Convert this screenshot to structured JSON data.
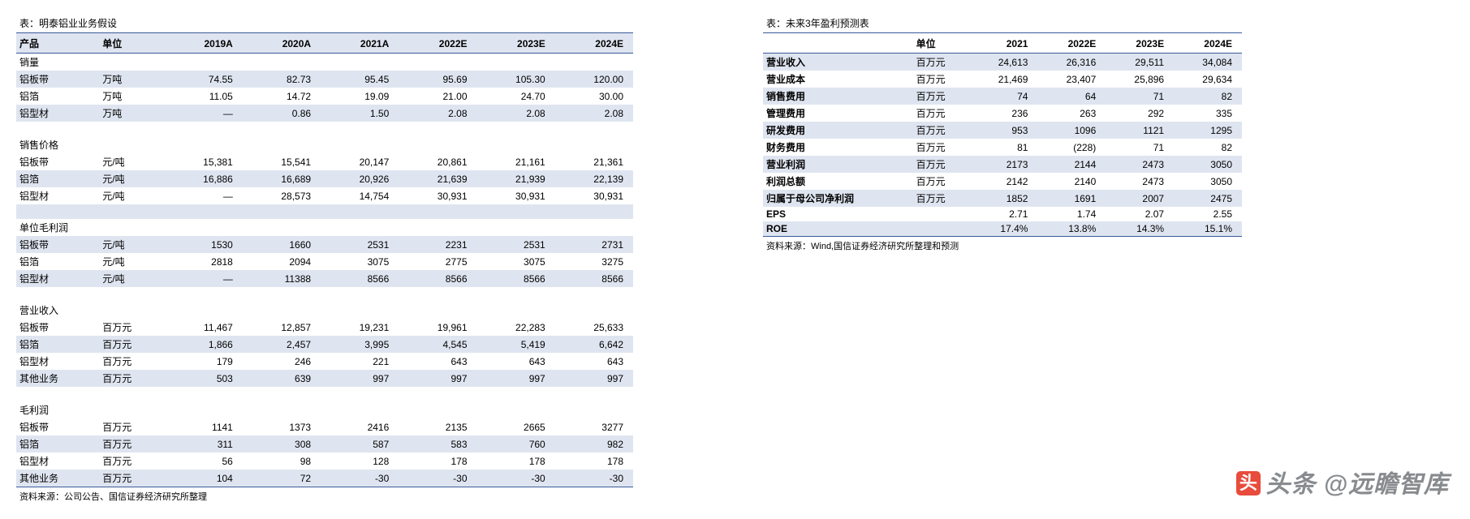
{
  "colors": {
    "stripe": "#dfe5f0",
    "border": "#3a5a9a",
    "text": "#000000",
    "background": "#ffffff",
    "watermark": "#888b8e",
    "wm_icon": "#e74c3c"
  },
  "left": {
    "title": "表：明泰铝业业务假设",
    "source": "资料来源：公司公告、国信证券经济研究所整理",
    "headers": [
      "产品",
      "单位",
      "2019A",
      "2020A",
      "2021A",
      "2022E",
      "2023E",
      "2024E"
    ],
    "sections": [
      {
        "name": "销量",
        "rows": [
          {
            "label": "铝板带",
            "unit": "万吨",
            "v": [
              "74.55",
              "82.73",
              "95.45",
              "95.69",
              "105.30",
              "120.00"
            ]
          },
          {
            "label": "铝箔",
            "unit": "万吨",
            "v": [
              "11.05",
              "14.72",
              "19.09",
              "21.00",
              "24.70",
              "30.00"
            ]
          },
          {
            "label": "铝型材",
            "unit": "万吨",
            "v": [
              "—",
              "0.86",
              "1.50",
              "2.08",
              "2.08",
              "2.08"
            ]
          }
        ]
      },
      {
        "name": "销售价格",
        "rows": [
          {
            "label": "铝板带",
            "unit": "元/吨",
            "v": [
              "15,381",
              "15,541",
              "20,147",
              "20,861",
              "21,161",
              "21,361"
            ]
          },
          {
            "label": "铝箔",
            "unit": "元/吨",
            "v": [
              "16,886",
              "16,689",
              "20,926",
              "21,639",
              "21,939",
              "22,139"
            ]
          },
          {
            "label": "铝型材",
            "unit": "元/吨",
            "v": [
              "—",
              "28,573",
              "14,754",
              "30,931",
              "30,931",
              "30,931"
            ]
          }
        ]
      },
      {
        "name": "单位毛利润",
        "rows": [
          {
            "label": "铝板带",
            "unit": "元/吨",
            "v": [
              "1530",
              "1660",
              "2531",
              "2231",
              "2531",
              "2731"
            ]
          },
          {
            "label": "铝箔",
            "unit": "元/吨",
            "v": [
              "2818",
              "2094",
              "3075",
              "2775",
              "3075",
              "3275"
            ]
          },
          {
            "label": "铝型材",
            "unit": "元/吨",
            "v": [
              "—",
              "11388",
              "8566",
              "8566",
              "8566",
              "8566"
            ]
          }
        ]
      },
      {
        "name": "营业收入",
        "rows": [
          {
            "label": "铝板带",
            "unit": "百万元",
            "v": [
              "11,467",
              "12,857",
              "19,231",
              "19,961",
              "22,283",
              "25,633"
            ]
          },
          {
            "label": "铝箔",
            "unit": "百万元",
            "v": [
              "1,866",
              "2,457",
              "3,995",
              "4,545",
              "5,419",
              "6,642"
            ]
          },
          {
            "label": "铝型材",
            "unit": "百万元",
            "v": [
              "179",
              "246",
              "221",
              "643",
              "643",
              "643"
            ]
          },
          {
            "label": "其他业务",
            "unit": "百万元",
            "v": [
              "503",
              "639",
              "997",
              "997",
              "997",
              "997"
            ]
          }
        ]
      },
      {
        "name": "毛利润",
        "rows": [
          {
            "label": "铝板带",
            "unit": "百万元",
            "v": [
              "1141",
              "1373",
              "2416",
              "2135",
              "2665",
              "3277"
            ]
          },
          {
            "label": "铝箔",
            "unit": "百万元",
            "v": [
              "311",
              "308",
              "587",
              "583",
              "760",
              "982"
            ]
          },
          {
            "label": "铝型材",
            "unit": "百万元",
            "v": [
              "56",
              "98",
              "128",
              "178",
              "178",
              "178"
            ]
          },
          {
            "label": "其他业务",
            "unit": "百万元",
            "v": [
              "104",
              "72",
              "-30",
              "-30",
              "-30",
              "-30"
            ]
          }
        ]
      }
    ]
  },
  "right": {
    "title": "表：未来3年盈利预测表",
    "source": "资料来源：Wind,国信证券经济研究所整理和预测",
    "headers": [
      "",
      "单位",
      "2021",
      "2022E",
      "2023E",
      "2024E"
    ],
    "rows": [
      {
        "label": "营业收入",
        "unit": "百万元",
        "v": [
          "24,613",
          "26,316",
          "29,511",
          "34,084"
        ]
      },
      {
        "label": "营业成本",
        "unit": "百万元",
        "v": [
          "21,469",
          "23,407",
          "25,896",
          "29,634"
        ]
      },
      {
        "label": "销售费用",
        "unit": "百万元",
        "v": [
          "74",
          "64",
          "71",
          "82"
        ]
      },
      {
        "label": "管理费用",
        "unit": "百万元",
        "v": [
          "236",
          "263",
          "292",
          "335"
        ]
      },
      {
        "label": "研发费用",
        "unit": "百万元",
        "v": [
          "953",
          "1096",
          "1121",
          "1295"
        ]
      },
      {
        "label": "财务费用",
        "unit": "百万元",
        "v": [
          "81",
          "(228)",
          "71",
          "82"
        ]
      },
      {
        "label": "营业利润",
        "unit": "百万元",
        "v": [
          "2173",
          "2144",
          "2473",
          "3050"
        ]
      },
      {
        "label": "利润总额",
        "unit": "百万元",
        "v": [
          "2142",
          "2140",
          "2473",
          "3050"
        ]
      },
      {
        "label": "归属于母公司净利润",
        "unit": "百万元",
        "v": [
          "1852",
          "1691",
          "2007",
          "2475"
        ]
      },
      {
        "label": "EPS",
        "unit": "",
        "v": [
          "2.71",
          "1.74",
          "2.07",
          "2.55"
        ]
      },
      {
        "label": "ROE",
        "unit": "",
        "v": [
          "17.4%",
          "13.8%",
          "14.3%",
          "15.1%"
        ]
      }
    ]
  },
  "watermark": {
    "prefix": "头条",
    "account": "@远瞻智库"
  }
}
